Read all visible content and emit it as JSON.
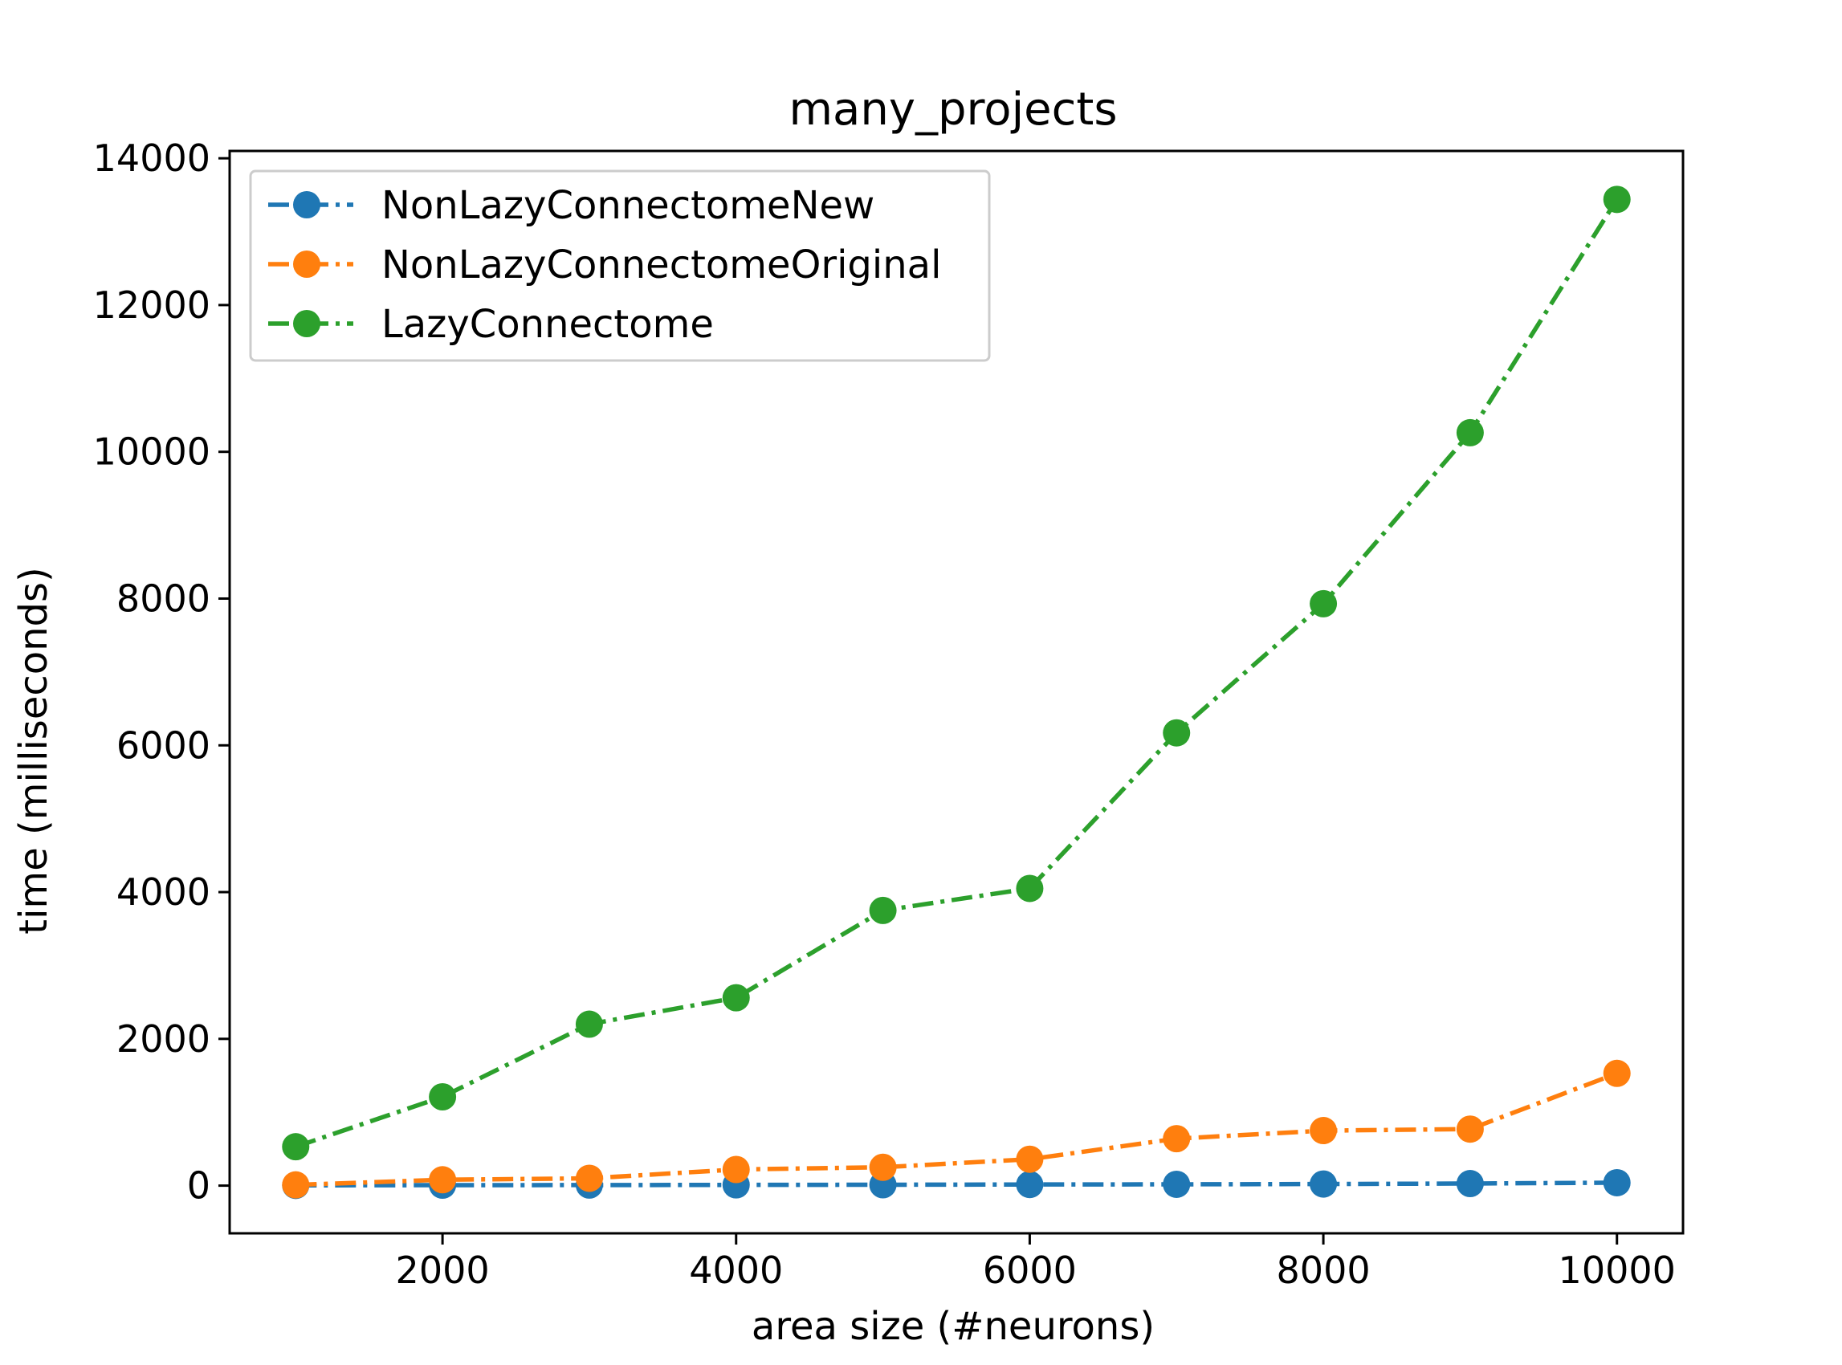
{
  "chart_data": {
    "type": "line",
    "title": "many_projects",
    "xlabel": "area size (#neurons)",
    "ylabel": "time (milliseconds)",
    "x": [
      1000,
      2000,
      3000,
      4000,
      5000,
      6000,
      7000,
      8000,
      9000,
      10000
    ],
    "xlim": [
      550,
      10450
    ],
    "ylim": [
      -650,
      14100
    ],
    "xticks": [
      2000,
      4000,
      6000,
      8000,
      10000
    ],
    "yticks": [
      0,
      2000,
      4000,
      6000,
      8000,
      10000,
      12000,
      14000
    ],
    "grid": false,
    "legend_position": "top-left",
    "line_style": "dash-dot",
    "marker": "circle",
    "series": [
      {
        "name": "NonLazyConnectomeNew",
        "color": "#1f77b4",
        "values": [
          3,
          6,
          8,
          10,
          12,
          15,
          18,
          22,
          28,
          40
        ]
      },
      {
        "name": "NonLazyConnectomeOriginal",
        "color": "#ff7f0e",
        "values": [
          10,
          80,
          100,
          220,
          250,
          360,
          640,
          750,
          770,
          1530
        ]
      },
      {
        "name": "LazyConnectome",
        "color": "#2ca02c",
        "values": [
          530,
          1210,
          2200,
          2560,
          3750,
          4050,
          6170,
          7930,
          10260,
          13440
        ]
      }
    ]
  }
}
